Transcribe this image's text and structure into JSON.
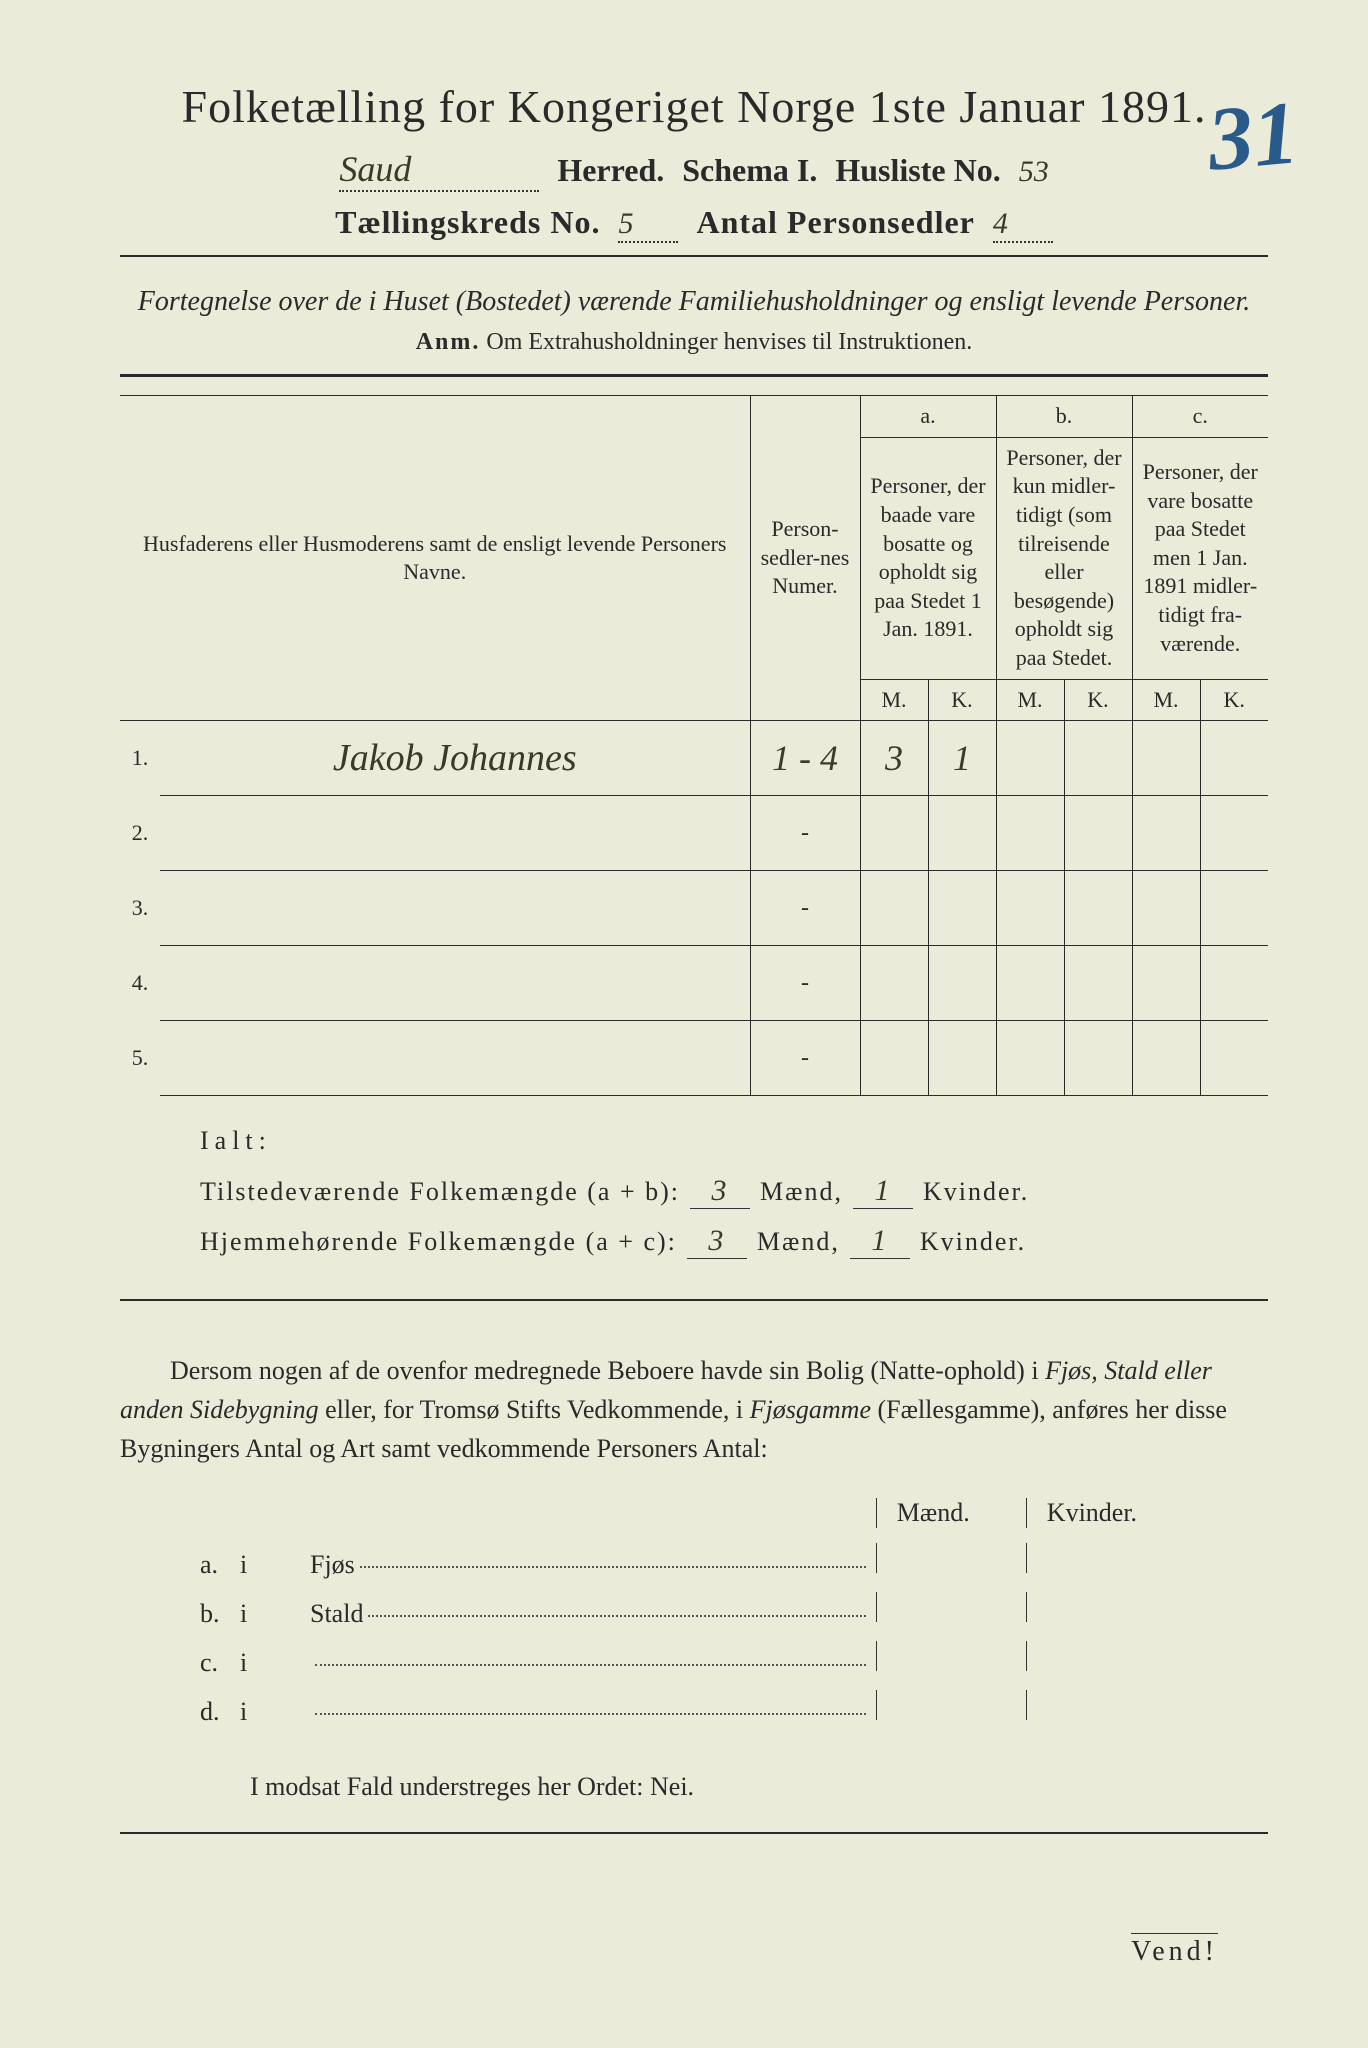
{
  "page": {
    "background_color": "#ebebd9",
    "text_color": "#2a2a2a",
    "handwriting_color": "#3a3a2a",
    "stamp_color": "#2a5a8a"
  },
  "header": {
    "title": "Folketælling for Kongeriget Norge 1ste Januar 1891.",
    "herred_value": "Saud",
    "herred_label": "Herred.",
    "schema_label": "Schema I.",
    "husliste_label": "Husliste No.",
    "husliste_value": "53",
    "kreds_label": "Tællingskreds No.",
    "kreds_value": "5",
    "personsedler_label": "Antal Personsedler",
    "personsedler_value": "4",
    "stamp_number": "31"
  },
  "subtitle": {
    "line": "Fortegnelse over de i Huset (Bostedet) værende Familiehusholdninger og ensligt levende Personer.",
    "anm_label": "Anm.",
    "anm_text": "Om Extrahusholdninger henvises til Instruktionen."
  },
  "table": {
    "col_name": "Husfaderens eller Husmoderens samt de ensligt levende Personers Navne.",
    "col_person": "Person-sedler-nes Numer.",
    "col_a_label": "a.",
    "col_a": "Personer, der baade vare bosatte og opholdt sig paa Stedet 1 Jan. 1891.",
    "col_b_label": "b.",
    "col_b": "Personer, der kun midler-tidigt (som tilreisende eller besøgende) opholdt sig paa Stedet.",
    "col_c_label": "c.",
    "col_c": "Personer, der vare bosatte paa Stedet men 1 Jan. 1891 midler-tidigt fra-værende.",
    "m_label": "M.",
    "k_label": "K.",
    "rows": [
      {
        "num": "1.",
        "name": "Jakob Johannes",
        "person": "1 - 4",
        "a_m": "3",
        "a_k": "1",
        "b_m": "",
        "b_k": "",
        "c_m": "",
        "c_k": ""
      },
      {
        "num": "2.",
        "name": "",
        "person": "-",
        "a_m": "",
        "a_k": "",
        "b_m": "",
        "b_k": "",
        "c_m": "",
        "c_k": ""
      },
      {
        "num": "3.",
        "name": "",
        "person": "-",
        "a_m": "",
        "a_k": "",
        "b_m": "",
        "b_k": "",
        "c_m": "",
        "c_k": ""
      },
      {
        "num": "4.",
        "name": "",
        "person": "-",
        "a_m": "",
        "a_k": "",
        "b_m": "",
        "b_k": "",
        "c_m": "",
        "c_k": ""
      },
      {
        "num": "5.",
        "name": "",
        "person": "-",
        "a_m": "",
        "a_k": "",
        "b_m": "",
        "b_k": "",
        "c_m": "",
        "c_k": ""
      }
    ]
  },
  "totals": {
    "ialt_label": "Ialt:",
    "line1_label": "Tilstedeværende Folkemængde (a + b):",
    "line1_m": "3",
    "line1_k": "1",
    "line2_label": "Hjemmehørende Folkemængde (a + c):",
    "line2_m": "3",
    "line2_k": "1",
    "maend": "Mænd,",
    "kvinder": "Kvinder."
  },
  "paragraph": {
    "text1": "Dersom nogen af de ovenfor medregnede Beboere havde sin Bolig (Natte-ophold) i ",
    "italic1": "Fjøs, Stald eller anden Sidebygning",
    "text2": " eller, for Tromsø Stifts Vedkommende, i ",
    "italic2": "Fjøsgamme",
    "text3": " (Fællesgamme), anføres her disse Bygningers Antal og Art samt vedkommende Personers Antal:"
  },
  "buildings": {
    "maend_label": "Mænd.",
    "kvinder_label": "Kvinder.",
    "rows": [
      {
        "letter": "a.",
        "i": "i",
        "name": "Fjøs"
      },
      {
        "letter": "b.",
        "i": "i",
        "name": "Stald"
      },
      {
        "letter": "c.",
        "i": "i",
        "name": ""
      },
      {
        "letter": "d.",
        "i": "i",
        "name": ""
      }
    ]
  },
  "footer": {
    "modsat": "I modsat Fald understreges her Ordet: Nei.",
    "vend": "Vend!"
  }
}
